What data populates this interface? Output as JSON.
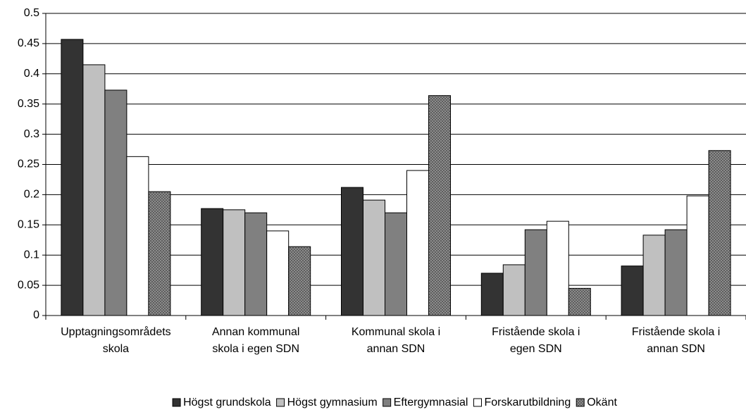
{
  "chart_data": {
    "type": "bar",
    "categories": [
      "Upptagningsområdets\nskola",
      "Annan kommunal\nskola i egen SDN",
      "Kommunal skola i\nannan SDN",
      "Fristående skola i\negen SDN",
      "Fristående skola i\nannan SDN"
    ],
    "series": [
      {
        "name": "Högst grundskola",
        "color": "#333333",
        "values": [
          0.457,
          0.177,
          0.212,
          0.07,
          0.082
        ]
      },
      {
        "name": "Högst gymnasium",
        "color": "#c0c0c0",
        "values": [
          0.415,
          0.175,
          0.191,
          0.084,
          0.133
        ]
      },
      {
        "name": "Eftergymnasial",
        "color": "#808080",
        "values": [
          0.373,
          0.17,
          0.17,
          0.142,
          0.142
        ]
      },
      {
        "name": "Forskarutbildning",
        "color": "#ffffff",
        "values": [
          0.263,
          0.14,
          0.24,
          0.156,
          0.198
        ]
      },
      {
        "name": "Okänt",
        "color": "#9a9a9a",
        "hatch": true,
        "values": [
          0.205,
          0.114,
          0.364,
          0.045,
          0.273
        ]
      }
    ],
    "ylim": [
      0,
      0.5
    ],
    "yticks": [
      0,
      0.05,
      0.1,
      0.15,
      0.2,
      0.25,
      0.3,
      0.35,
      0.4,
      0.45,
      0.5
    ],
    "grid": true,
    "legend": "bottom"
  }
}
